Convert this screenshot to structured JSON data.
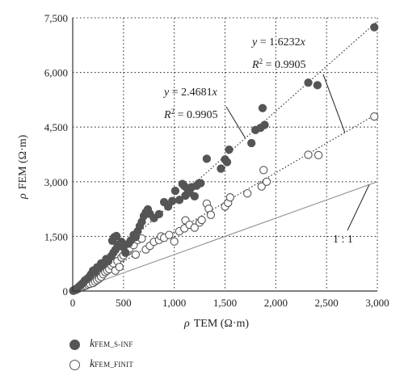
{
  "chart_data": {
    "type": "scatter",
    "xlabel_symbol": "ρ",
    "xlabel_text": "TEM (Ω·m)",
    "ylabel_symbol": "ρ",
    "ylabel_text": "FEM (Ω·m)",
    "xlim": [
      0,
      3000
    ],
    "ylim": [
      0,
      7500
    ],
    "x_ticks": [
      0,
      500,
      1000,
      1500,
      2000,
      2500,
      3000
    ],
    "x_tick_labels": [
      "0",
      "500",
      "1,000",
      "1,500",
      "2,000",
      "2,500",
      "3,000"
    ],
    "y_ticks": [
      0,
      1500,
      3000,
      4500,
      6000,
      7500
    ],
    "y_tick_labels": [
      "0",
      "1,500",
      "3,000",
      "4,500",
      "6,000",
      "7,500"
    ],
    "grid": true,
    "legend_position": "bottom-left",
    "series": [
      {
        "legend_symbol": "k",
        "legend_subscript": "FEM_S-INF",
        "marker": "filled",
        "color": "#555555",
        "points": [
          [
            5,
            10
          ],
          [
            20,
            40
          ],
          [
            40,
            70
          ],
          [
            60,
            120
          ],
          [
            80,
            170
          ],
          [
            100,
            220
          ],
          [
            120,
            290
          ],
          [
            140,
            330
          ],
          [
            160,
            380
          ],
          [
            180,
            460
          ],
          [
            200,
            560
          ],
          [
            220,
            520
          ],
          [
            240,
            650
          ],
          [
            260,
            640
          ],
          [
            280,
            760
          ],
          [
            300,
            720
          ],
          [
            330,
            880
          ],
          [
            350,
            820
          ],
          [
            380,
            960
          ],
          [
            400,
            1050
          ],
          [
            420,
            1130
          ],
          [
            440,
            1210
          ],
          [
            460,
            1290
          ],
          [
            480,
            1350
          ],
          [
            390,
            1380
          ],
          [
            410,
            1480
          ],
          [
            430,
            1510
          ],
          [
            500,
            1200
          ],
          [
            520,
            1050
          ],
          [
            550,
            1300
          ],
          [
            570,
            1380
          ],
          [
            600,
            1540
          ],
          [
            620,
            1480
          ],
          [
            640,
            1640
          ],
          [
            660,
            1780
          ],
          [
            680,
            1900
          ],
          [
            700,
            2060
          ],
          [
            720,
            2160
          ],
          [
            740,
            2240
          ],
          [
            760,
            2120
          ],
          [
            800,
            2000
          ],
          [
            850,
            2110
          ],
          [
            900,
            2440
          ],
          [
            940,
            2320
          ],
          [
            980,
            2470
          ],
          [
            1010,
            2750
          ],
          [
            1050,
            2500
          ],
          [
            1080,
            2940
          ],
          [
            1100,
            2880
          ],
          [
            1110,
            2620
          ],
          [
            1130,
            2810
          ],
          [
            1150,
            2700
          ],
          [
            1170,
            2850
          ],
          [
            1200,
            2600
          ],
          [
            1220,
            2890
          ],
          [
            1240,
            2950
          ],
          [
            1260,
            2960
          ],
          [
            1320,
            3630
          ],
          [
            1460,
            3360
          ],
          [
            1500,
            3610
          ],
          [
            1520,
            3540
          ],
          [
            1540,
            3880
          ],
          [
            1760,
            4060
          ],
          [
            1800,
            4420
          ],
          [
            1850,
            4480
          ],
          [
            1870,
            5020
          ],
          [
            1890,
            4560
          ],
          [
            2320,
            5720
          ],
          [
            2410,
            5650
          ],
          [
            2970,
            7240
          ]
        ]
      },
      {
        "legend_symbol": "k",
        "legend_subscript": "FEM_FINIT",
        "marker": "hollow",
        "color": "#555555",
        "points": [
          [
            5,
            10
          ],
          [
            20,
            20
          ],
          [
            40,
            40
          ],
          [
            60,
            70
          ],
          [
            90,
            100
          ],
          [
            110,
            130
          ],
          [
            130,
            150
          ],
          [
            150,
            180
          ],
          [
            170,
            200
          ],
          [
            200,
            220
          ],
          [
            220,
            260
          ],
          [
            240,
            300
          ],
          [
            260,
            340
          ],
          [
            280,
            390
          ],
          [
            300,
            460
          ],
          [
            320,
            520
          ],
          [
            340,
            560
          ],
          [
            360,
            600
          ],
          [
            380,
            700
          ],
          [
            400,
            760
          ],
          [
            420,
            560
          ],
          [
            440,
            820
          ],
          [
            460,
            660
          ],
          [
            480,
            920
          ],
          [
            500,
            980
          ],
          [
            540,
            1080
          ],
          [
            560,
            1170
          ],
          [
            600,
            1260
          ],
          [
            620,
            1000
          ],
          [
            640,
            1400
          ],
          [
            680,
            1440
          ],
          [
            720,
            1140
          ],
          [
            760,
            1240
          ],
          [
            800,
            1350
          ],
          [
            850,
            1400
          ],
          [
            870,
            1500
          ],
          [
            900,
            1460
          ],
          [
            950,
            1540
          ],
          [
            1000,
            1360
          ],
          [
            1050,
            1640
          ],
          [
            1100,
            1720
          ],
          [
            1110,
            1940
          ],
          [
            1150,
            1820
          ],
          [
            1200,
            1740
          ],
          [
            1250,
            1880
          ],
          [
            1270,
            1950
          ],
          [
            1320,
            2400
          ],
          [
            1340,
            2260
          ],
          [
            1360,
            2090
          ],
          [
            1500,
            2320
          ],
          [
            1530,
            2420
          ],
          [
            1550,
            2570
          ],
          [
            1720,
            2680
          ],
          [
            1860,
            2870
          ],
          [
            1880,
            3320
          ],
          [
            1910,
            3000
          ],
          [
            2320,
            3740
          ],
          [
            2420,
            3730
          ],
          [
            2970,
            4790
          ]
        ]
      }
    ],
    "trend_lines": [
      {
        "equation_y": "y",
        "equation_coef": " = 1.6232",
        "equation_x": "x",
        "r2_label": "R",
        "r2_value": " = 0.9905",
        "slope": 1.6232
      },
      {
        "equation_y": "y",
        "equation_coef": " = 2.4681",
        "equation_x": "x",
        "r2_label": "R",
        "r2_value": " = 0.9905",
        "slope": 2.4681
      }
    ],
    "reference_line": {
      "label": "1 : 1",
      "slope": 1
    }
  }
}
